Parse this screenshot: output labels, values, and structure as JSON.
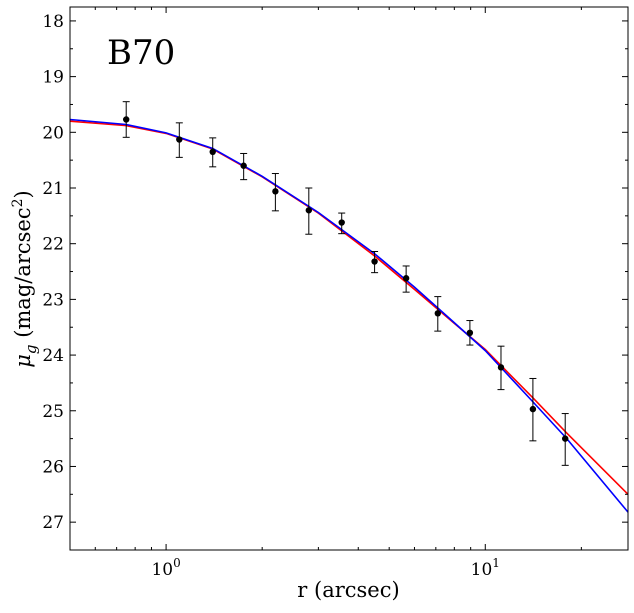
{
  "chart_data": {
    "type": "scatter",
    "annotation": "B70",
    "xlabel": "r (arcsec)",
    "ylabel_main": "μ",
    "ylabel_sub": "g",
    "ylabel_rest": " (mag/arcsec",
    "ylabel_sup": "2",
    "ylabel_close": ")",
    "xscale": "log",
    "xlim": [
      0.5,
      28
    ],
    "ylim": [
      27.5,
      17.75
    ],
    "y_inverted": true,
    "grid": false,
    "x_major_ticks": [
      {
        "value": 1,
        "base": "10",
        "exp": "0"
      },
      {
        "value": 10,
        "base": "10",
        "exp": "1"
      }
    ],
    "y_ticks": [
      18,
      19,
      20,
      21,
      22,
      23,
      24,
      25,
      26,
      27
    ],
    "y_tick_labels": [
      "18",
      "19",
      "20",
      "21",
      "22",
      "23",
      "24",
      "25",
      "26",
      "27"
    ],
    "points": [
      {
        "x": 0.75,
        "y": 19.77,
        "err_lo": 0.32,
        "err_hi": 0.32
      },
      {
        "x": 1.1,
        "y": 20.13,
        "err_lo": 0.3,
        "err_hi": 0.32
      },
      {
        "x": 1.4,
        "y": 20.35,
        "err_lo": 0.25,
        "err_hi": 0.27
      },
      {
        "x": 1.75,
        "y": 20.6,
        "err_lo": 0.22,
        "err_hi": 0.25
      },
      {
        "x": 2.2,
        "y": 21.06,
        "err_lo": 0.32,
        "err_hi": 0.35
      },
      {
        "x": 2.8,
        "y": 21.4,
        "err_lo": 0.4,
        "err_hi": 0.43
      },
      {
        "x": 3.55,
        "y": 21.62,
        "err_lo": 0.17,
        "err_hi": 0.2
      },
      {
        "x": 4.5,
        "y": 22.32,
        "err_lo": 0.18,
        "err_hi": 0.2
      },
      {
        "x": 5.65,
        "y": 22.62,
        "err_lo": 0.22,
        "err_hi": 0.25
      },
      {
        "x": 7.1,
        "y": 23.25,
        "err_lo": 0.3,
        "err_hi": 0.32
      },
      {
        "x": 8.95,
        "y": 23.6,
        "err_lo": 0.22,
        "err_hi": 0.22
      },
      {
        "x": 11.2,
        "y": 24.22,
        "err_lo": 0.38,
        "err_hi": 0.4
      },
      {
        "x": 14.1,
        "y": 24.97,
        "err_lo": 0.55,
        "err_hi": 0.57
      },
      {
        "x": 17.8,
        "y": 25.5,
        "err_lo": 0.45,
        "err_hi": 0.48
      }
    ],
    "series": [
      {
        "color": "#ff0000",
        "line": [
          [
            0.5,
            19.8
          ],
          [
            0.75,
            19.88
          ],
          [
            1.0,
            20.02
          ],
          [
            1.4,
            20.3
          ],
          [
            2.0,
            20.8
          ],
          [
            3.0,
            21.45
          ],
          [
            4.5,
            22.22
          ],
          [
            6.0,
            22.82
          ],
          [
            8.0,
            23.43
          ],
          [
            10.0,
            23.9
          ],
          [
            14.0,
            24.75
          ],
          [
            18.0,
            25.4
          ],
          [
            28.0,
            26.5
          ]
        ]
      },
      {
        "color": "#0000ff",
        "line": [
          [
            0.5,
            19.77
          ],
          [
            0.75,
            19.86
          ],
          [
            1.0,
            20.01
          ],
          [
            1.4,
            20.29
          ],
          [
            2.0,
            20.79
          ],
          [
            3.0,
            21.44
          ],
          [
            4.5,
            22.18
          ],
          [
            6.0,
            22.78
          ],
          [
            8.0,
            23.42
          ],
          [
            10.0,
            23.92
          ],
          [
            14.0,
            24.82
          ],
          [
            18.0,
            25.5
          ],
          [
            28.0,
            26.82
          ]
        ]
      }
    ]
  }
}
